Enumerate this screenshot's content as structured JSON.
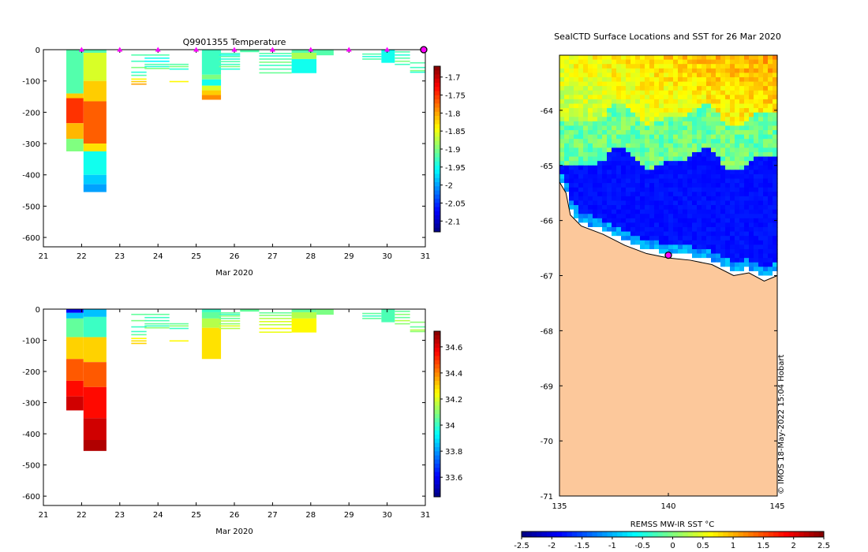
{
  "chart_data": [
    {
      "id": "temperature-section",
      "type": "heatmap",
      "title": "Q9901355  Temperature",
      "xlabel": "Mar 2020",
      "ylabel": "",
      "xlim": [
        21,
        31
      ],
      "ylim": [
        -630,
        0
      ],
      "xticks": [
        "21",
        "22",
        "23",
        "24",
        "25",
        "26",
        "27",
        "28",
        "29",
        "30",
        "31"
      ],
      "yticks": [
        "0",
        "-100",
        "-200",
        "-300",
        "-400",
        "-500",
        "-600"
      ],
      "colorbar": {
        "range": [
          -2.13,
          -1.67
        ],
        "ticks": [
          "-1.7",
          "-1.75",
          "-1.8",
          "-1.85",
          "-1.9",
          "-1.95",
          "-2",
          "-2.05",
          "-2.1"
        ]
      },
      "profiles": [
        {
          "x0": 21.6,
          "x1": 22.05,
          "bands": [
            [
              0,
              -140,
              -1.92
            ],
            [
              -140,
              -155,
              -1.82
            ],
            [
              -155,
              -235,
              -1.75
            ],
            [
              -235,
              -285,
              -1.81
            ],
            [
              -285,
              -325,
              -1.9
            ]
          ]
        },
        {
          "x0": 22.05,
          "x1": 22.65,
          "bands": [
            [
              0,
              -10,
              -1.92
            ],
            [
              -10,
              -100,
              -1.86
            ],
            [
              -100,
              -165,
              -1.82
            ],
            [
              -165,
              -300,
              -1.77
            ],
            [
              -300,
              -325,
              -1.83
            ],
            [
              -325,
              -400,
              -1.95
            ],
            [
              -400,
              -430,
              -1.98
            ],
            [
              -430,
              -455,
              -2.0
            ]
          ]
        },
        {
          "x0": 23.3,
          "x1": 23.7,
          "lines": [
            [
              -15,
              -1.92
            ],
            [
              -35,
              -1.93
            ],
            [
              -55,
              -1.9
            ],
            [
              -70,
              -1.94
            ],
            [
              -80,
              -1.92
            ],
            [
              -92,
              -1.84
            ],
            [
              -100,
              -1.82
            ],
            [
              -108,
              -1.8
            ]
          ]
        },
        {
          "x0": 23.65,
          "x1": 24.3,
          "lines": [
            [
              -15,
              -1.92
            ],
            [
              -25,
              -1.95
            ],
            [
              -35,
              -1.96
            ],
            [
              -45,
              -1.92
            ],
            [
              -52,
              -1.94
            ],
            [
              -58,
              -1.9
            ]
          ]
        },
        {
          "x0": 24.3,
          "x1": 24.8,
          "lines": [
            [
              -45,
              -1.92
            ],
            [
              -52,
              -1.9
            ],
            [
              -60,
              -1.94
            ],
            [
              -100,
              -1.84
            ]
          ]
        },
        {
          "x0": 25.15,
          "x1": 25.65,
          "bands": [
            [
              0,
              -80,
              -1.93
            ],
            [
              -80,
              -95,
              -1.9
            ],
            [
              -95,
              -115,
              -1.95
            ],
            [
              -115,
              -130,
              -1.86
            ],
            [
              -130,
              -145,
              -1.82
            ],
            [
              -145,
              -160,
              -1.79
            ]
          ]
        },
        {
          "x0": 25.6,
          "x1": 26.15,
          "lines": [
            [
              -10,
              -1.93
            ],
            [
              -15,
              -1.95
            ],
            [
              -20,
              -1.92
            ],
            [
              -28,
              -1.94
            ],
            [
              -36,
              -1.92
            ],
            [
              -45,
              -1.93
            ],
            [
              -52,
              -1.9
            ],
            [
              -60,
              -1.94
            ]
          ]
        },
        {
          "x0": 26.15,
          "x1": 26.65,
          "bands": [
            [
              0,
              -8,
              -1.92
            ]
          ]
        },
        {
          "x0": 26.65,
          "x1": 27.5,
          "lines": [
            [
              -10,
              -1.92
            ],
            [
              -18,
              -1.94
            ],
            [
              -28,
              -1.92
            ],
            [
              -38,
              -1.9
            ],
            [
              -48,
              -1.93
            ],
            [
              -60,
              -1.92
            ],
            [
              -72,
              -1.91
            ]
          ]
        },
        {
          "x0": 27.5,
          "x1": 28.15,
          "bands": [
            [
              0,
              -10,
              -1.92
            ],
            [
              -10,
              -30,
              -1.88
            ],
            [
              -30,
              -75,
              -1.95
            ]
          ]
        },
        {
          "x0": 28.15,
          "x1": 28.6,
          "bands": [
            [
              0,
              -18,
              -1.92
            ]
          ]
        },
        {
          "x0": 29.35,
          "x1": 29.85,
          "lines": [
            [
              -12,
              -1.92
            ],
            [
              -20,
              -1.94
            ],
            [
              -28,
              -1.92
            ]
          ]
        },
        {
          "x0": 29.85,
          "x1": 30.2,
          "bands": [
            [
              0,
              -42,
              -1.95
            ]
          ]
        },
        {
          "x0": 30.2,
          "x1": 30.6,
          "lines": [
            [
              -5,
              -1.92
            ],
            [
              -15,
              -1.94
            ],
            [
              -25,
              -1.92
            ],
            [
              -35,
              -1.9
            ],
            [
              -45,
              -1.93
            ]
          ]
        },
        {
          "x0": 30.6,
          "x1": 31.0,
          "lines": [
            [
              -40,
              -1.92
            ],
            [
              -55,
              -1.93
            ],
            [
              -65,
              -1.9
            ],
            [
              -70,
              -1.94
            ]
          ]
        }
      ],
      "markers": [
        22,
        23,
        24,
        25,
        26,
        27,
        28,
        29,
        30
      ],
      "end_marker": 31
    },
    {
      "id": "salinity-section",
      "type": "heatmap",
      "title": "",
      "xlabel": "Mar 2020",
      "ylabel": "",
      "xlim": [
        21,
        31
      ],
      "ylim": [
        -630,
        0
      ],
      "xticks": [
        "21",
        "22",
        "23",
        "24",
        "25",
        "26",
        "27",
        "28",
        "29",
        "30",
        "31"
      ],
      "yticks": [
        "0",
        "-100",
        "-200",
        "-300",
        "-400",
        "-500",
        "-600"
      ],
      "colorbar": {
        "range": [
          33.45,
          34.72
        ],
        "ticks": [
          "34.6",
          "34.4",
          "34.2",
          "34",
          "33.8",
          "33.6"
        ]
      },
      "profiles": [
        {
          "x0": 21.6,
          "x1": 22.05,
          "bands": [
            [
              0,
              -12,
              33.6
            ],
            [
              -12,
              -30,
              33.85
            ],
            [
              -30,
              -90,
              34.05
            ],
            [
              -90,
              -160,
              34.3
            ],
            [
              -160,
              -230,
              34.45
            ],
            [
              -230,
              -280,
              34.55
            ],
            [
              -280,
              -325,
              34.62
            ]
          ]
        },
        {
          "x0": 22.05,
          "x1": 22.65,
          "bands": [
            [
              0,
              -25,
              33.85
            ],
            [
              -25,
              -90,
              34.0
            ],
            [
              -90,
              -170,
              34.3
            ],
            [
              -170,
              -250,
              34.45
            ],
            [
              -250,
              -350,
              34.55
            ],
            [
              -350,
              -420,
              34.62
            ],
            [
              -420,
              -455,
              34.66
            ]
          ]
        },
        {
          "x0": 23.3,
          "x1": 23.7,
          "lines": [
            [
              -15,
              34.05
            ],
            [
              -35,
              34.08
            ],
            [
              -55,
              34.0
            ],
            [
              -70,
              34.0
            ],
            [
              -80,
              34.05
            ],
            [
              -92,
              34.25
            ],
            [
              -100,
              34.28
            ],
            [
              -108,
              34.3
            ]
          ]
        },
        {
          "x0": 23.65,
          "x1": 24.3,
          "lines": [
            [
              -15,
              34.05
            ],
            [
              -25,
              34.0
            ],
            [
              -35,
              34.02
            ],
            [
              -45,
              34.05
            ],
            [
              -52,
              34.0
            ],
            [
              -58,
              34.1
            ]
          ]
        },
        {
          "x0": 24.3,
          "x1": 24.8,
          "lines": [
            [
              -45,
              34.05
            ],
            [
              -52,
              34.1
            ],
            [
              -60,
              34.0
            ],
            [
              -100,
              34.25
            ]
          ]
        },
        {
          "x0": 25.15,
          "x1": 25.65,
          "bands": [
            [
              0,
              -10,
              34.0
            ],
            [
              -10,
              -30,
              34.05
            ],
            [
              -30,
              -60,
              34.15
            ],
            [
              -60,
              -160,
              34.28
            ]
          ]
        },
        {
          "x0": 25.6,
          "x1": 26.15,
          "lines": [
            [
              -10,
              34.05
            ],
            [
              -15,
              34.0
            ],
            [
              -20,
              34.1
            ],
            [
              -28,
              34.05
            ],
            [
              -36,
              34.15
            ],
            [
              -45,
              34.1
            ],
            [
              -52,
              34.2
            ],
            [
              -60,
              34.15
            ]
          ]
        },
        {
          "x0": 26.15,
          "x1": 26.65,
          "bands": [
            [
              0,
              -8,
              34.05
            ]
          ]
        },
        {
          "x0": 26.65,
          "x1": 27.5,
          "lines": [
            [
              -10,
              34.05
            ],
            [
              -18,
              34.1
            ],
            [
              -28,
              34.15
            ],
            [
              -38,
              34.2
            ],
            [
              -48,
              34.15
            ],
            [
              -60,
              34.25
            ],
            [
              -72,
              34.22
            ]
          ]
        },
        {
          "x0": 27.5,
          "x1": 28.15,
          "bands": [
            [
              0,
              -10,
              34.05
            ],
            [
              -10,
              -30,
              34.15
            ],
            [
              -30,
              -75,
              34.25
            ]
          ]
        },
        {
          "x0": 28.15,
          "x1": 28.6,
          "bands": [
            [
              0,
              -18,
              34.08
            ]
          ]
        },
        {
          "x0": 29.35,
          "x1": 29.85,
          "lines": [
            [
              -12,
              34.05
            ],
            [
              -20,
              34.0
            ],
            [
              -28,
              34.05
            ]
          ]
        },
        {
          "x0": 29.85,
          "x1": 30.2,
          "bands": [
            [
              0,
              -42,
              34.02
            ]
          ]
        },
        {
          "x0": 30.2,
          "x1": 30.6,
          "lines": [
            [
              -5,
              34.05
            ],
            [
              -15,
              34.1
            ],
            [
              -25,
              34.05
            ],
            [
              -35,
              34.15
            ],
            [
              -45,
              34.1
            ]
          ]
        },
        {
          "x0": 30.6,
          "x1": 31.0,
          "lines": [
            [
              -40,
              34.1
            ],
            [
              -55,
              34.05
            ],
            [
              -65,
              34.15
            ],
            [
              -70,
              34.1
            ]
          ]
        }
      ]
    },
    {
      "id": "sst-map",
      "type": "heatmap",
      "title": "SealCTD Surface Locations and SST for 26 Mar 2020",
      "xlim": [
        135,
        145
      ],
      "ylim": [
        -71,
        -63
      ],
      "xticks": [
        "135",
        "140",
        "145"
      ],
      "yticks": [
        "-64",
        "-65",
        "-66",
        "-67",
        "-68",
        "-69",
        "-70",
        "-71"
      ],
      "colorbar": {
        "label": "REMSS MW-IR SST °C",
        "range": [
          -2.5,
          2.5
        ],
        "ticks": [
          "-2.5",
          "-2",
          "-1.5",
          "-1",
          "-0.5",
          "0",
          "0.5",
          "1",
          "1.5",
          "2",
          "2.5"
        ]
      },
      "regions": [
        {
          "name": "warm-open-water",
          "lat_from": -63.0,
          "lat_to": -64.1,
          "sst": 0.7
        },
        {
          "name": "transition",
          "lat_from": -64.1,
          "lat_to": -64.9,
          "sst": 0.1
        },
        {
          "name": "cold-water",
          "lat_from": -64.9,
          "lat_to": -67.0,
          "sst": -1.8
        },
        {
          "name": "land",
          "sst": null
        }
      ],
      "coastline": [
        [
          135,
          -65.3
        ],
        [
          135.3,
          -65.5
        ],
        [
          135.5,
          -65.9
        ],
        [
          136,
          -66.1
        ],
        [
          137,
          -66.25
        ],
        [
          138,
          -66.45
        ],
        [
          139,
          -66.6
        ],
        [
          140,
          -66.68
        ],
        [
          141,
          -66.72
        ],
        [
          142,
          -66.8
        ],
        [
          143,
          -67.0
        ],
        [
          143.7,
          -66.95
        ],
        [
          144.4,
          -67.1
        ],
        [
          145,
          -67.0
        ]
      ],
      "location_marker": {
        "lon": 140.0,
        "lat": -66.63
      },
      "watermark": "© IMOS 18-May-2022 15:04 Hobart"
    }
  ]
}
